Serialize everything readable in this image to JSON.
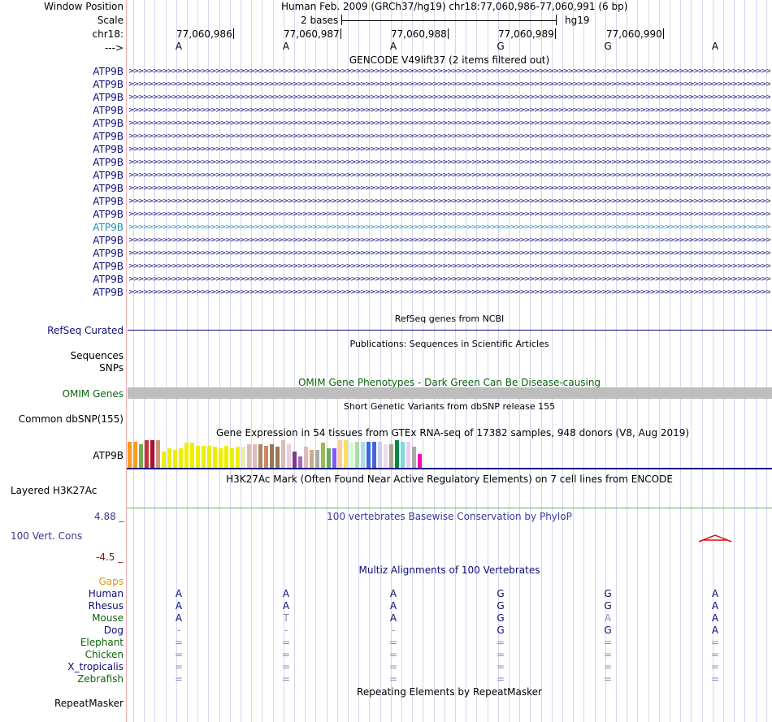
{
  "header": {
    "window_position_label": "Window Position",
    "scale_label": "Scale",
    "chrom_label": "chr18:",
    "strand_label": "--->",
    "title": "Human Feb. 2009 (GRCh37/hg19)   chr18:77,060,986-77,060,991 (6 bp)",
    "scale_text": "2 bases",
    "assembly": "hg19",
    "positions": [
      "77,060,986",
      "77,060,987",
      "77,060,988",
      "77,060,989",
      "77,060,990"
    ],
    "sequence": [
      "A",
      "A",
      "A",
      "G",
      "G",
      "A"
    ]
  },
  "gencode": {
    "title": "GENCODE V49lift37 (2 items filtered out)",
    "items": [
      "ATP9B",
      "ATP9B",
      "ATP9B",
      "ATP9B",
      "ATP9B",
      "ATP9B",
      "ATP9B",
      "ATP9B",
      "ATP9B",
      "ATP9B",
      "ATP9B",
      "ATP9B",
      "ATP9B",
      "ATP9B",
      "ATP9B",
      "ATP9B",
      "ATP9B",
      "ATP9B"
    ],
    "highlight_index": 12,
    "colors": {
      "gene": "#0c0c78",
      "highlight": "#1f8fae"
    }
  },
  "refseq": {
    "title": "RefSeq genes from NCBI",
    "label": "RefSeq Curated"
  },
  "publications": {
    "title": "Publications: Sequences in Scientific Articles",
    "labels": [
      "Sequences",
      "SNPs"
    ]
  },
  "omim": {
    "title": "OMIM Gene Phenotypes - Dark Green Can Be Disease-causing",
    "label": "OMIM Genes",
    "bar_color": "#bebebe"
  },
  "dbsnp": {
    "title": "Short Genetic Variants from dbSNP release 155",
    "label": "Common dbSNP(155)"
  },
  "gtex": {
    "title": "Gene Expression in 54 tissues from GTEx RNA-seq of 17382 samples, 948 donors (V8, Aug 2019)",
    "label": "ATP9B",
    "bars": [
      {
        "color": "#ff9922",
        "value": 0.95
      },
      {
        "color": "#ff9922",
        "value": 0.95
      },
      {
        "color": "#77aa55",
        "value": 0.85
      },
      {
        "color": "#cc3333",
        "value": 1.0
      },
      {
        "color": "#aa1133",
        "value": 1.0
      },
      {
        "color": "#cc9977",
        "value": 1.0
      },
      {
        "color": "#eeee00",
        "value": 0.6
      },
      {
        "color": "#eeee00",
        "value": 0.7
      },
      {
        "color": "#eeee00",
        "value": 0.65
      },
      {
        "color": "#eeee00",
        "value": 0.7
      },
      {
        "color": "#eeee00",
        "value": 0.9
      },
      {
        "color": "#eeee00",
        "value": 0.9
      },
      {
        "color": "#eeee00",
        "value": 0.8
      },
      {
        "color": "#eeee00",
        "value": 0.8
      },
      {
        "color": "#eeee00",
        "value": 0.8
      },
      {
        "color": "#eeee00",
        "value": 0.75
      },
      {
        "color": "#eeee00",
        "value": 0.7
      },
      {
        "color": "#eeee00",
        "value": 0.8
      },
      {
        "color": "#eeee00",
        "value": 0.7
      },
      {
        "color": "#eeee00",
        "value": 0.75
      },
      {
        "color": "#eeeeaa",
        "value": 0.75
      },
      {
        "color": "#ddbbbb",
        "value": 0.85
      },
      {
        "color": "#ddbbbb",
        "value": 0.85
      },
      {
        "color": "#aa8866",
        "value": 0.85
      },
      {
        "color": "#cc8866",
        "value": 0.8
      },
      {
        "color": "#997755",
        "value": 0.85
      },
      {
        "color": "#997755",
        "value": 0.75
      },
      {
        "color": "#ddbbbb",
        "value": 1.0
      },
      {
        "color": "#eeccdd",
        "value": 0.85
      },
      {
        "color": "#7a3a8a",
        "value": 0.6
      },
      {
        "color": "#aa66bb",
        "value": 0.4
      },
      {
        "color": "#ddbbbb",
        "value": 0.75
      },
      {
        "color": "#ccaa88",
        "value": 0.65
      },
      {
        "color": "#aaaaaa",
        "value": 0.65
      },
      {
        "color": "#99bb55",
        "value": 0.9
      },
      {
        "color": "#66aa66",
        "value": 0.7
      },
      {
        "color": "#8855ff",
        "value": 0.7
      },
      {
        "color": "#ffcc99",
        "value": 1.0
      },
      {
        "color": "#ffdd66",
        "value": 1.0
      },
      {
        "color": "#ccffcc",
        "value": 0.9
      },
      {
        "color": "#aaddaa",
        "value": 0.95
      },
      {
        "color": "#aaddee",
        "value": 0.95
      },
      {
        "color": "#4466dd",
        "value": 0.95
      },
      {
        "color": "#4466dd",
        "value": 0.95
      },
      {
        "color": "#ccccee",
        "value": 0.95
      },
      {
        "color": "#eeddee",
        "value": 0.85
      },
      {
        "color": "#aaaa88",
        "value": 0.85
      },
      {
        "color": "#008844",
        "value": 1.0
      },
      {
        "color": "#77dddd",
        "value": 0.95
      },
      {
        "color": "#eeccee",
        "value": 0.95
      },
      {
        "color": "#aaaaaa",
        "value": 0.75
      },
      {
        "color": "#ff00bb",
        "value": 0.5
      }
    ]
  },
  "h3k27ac": {
    "title": "H3K27Ac Mark (Often Found Near Active Regulatory Elements) on 7 cell lines from ENCODE",
    "label": "Layered H3K27Ac"
  },
  "phylop": {
    "title": "100 vertebrates Basewise Conservation by PhyloP",
    "label": "100 Vert. Cons",
    "max_label": "4.88 _",
    "min_label": "-4.5 _",
    "max_color": "#3a3a88",
    "min_color": "#7a1a1a",
    "peak_color": "#dd1111"
  },
  "multiz": {
    "title": "Multiz Alignments of 100 Vertebrates",
    "gaps_label": "Gaps",
    "gaps_color": "#e69600",
    "species": [
      {
        "name": "Human",
        "color": "#0c0c78",
        "bases": [
          "A",
          "A",
          "A",
          "G",
          "G",
          "A"
        ]
      },
      {
        "name": "Rhesus",
        "color": "#0c0c78",
        "bases": [
          "A",
          "A",
          "A",
          "G",
          "G",
          "A"
        ]
      },
      {
        "name": "Mouse",
        "color": "#0c640c",
        "bases": [
          "A",
          "T",
          "A",
          "G",
          "A",
          "A"
        ]
      },
      {
        "name": "Dog",
        "color": "#0c0c78",
        "bases": [
          "-",
          "-",
          "-",
          "G",
          "G",
          "A"
        ]
      },
      {
        "name": "Elephant",
        "color": "#0c640c",
        "bases": [
          "=",
          "=",
          "=",
          "=",
          "=",
          "="
        ]
      },
      {
        "name": "Chicken",
        "color": "#0c640c",
        "bases": [
          "=",
          "=",
          "=",
          "=",
          "=",
          "="
        ]
      },
      {
        "name": "X_tropicalis",
        "color": "#0c0c78",
        "bases": [
          "=",
          "=",
          "=",
          "=",
          "=",
          "="
        ]
      },
      {
        "name": "Zebrafish",
        "color": "#0c640c",
        "bases": [
          "=",
          "=",
          "=",
          "=",
          "=",
          "="
        ]
      }
    ]
  },
  "repeatmasker": {
    "title": "Repeating Elements by RepeatMasker",
    "label": "RepeatMasker"
  }
}
